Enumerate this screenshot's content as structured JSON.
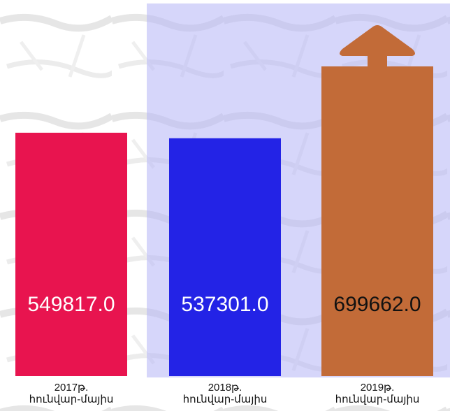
{
  "chart_data": {
    "type": "bar",
    "title": "",
    "xlabel": "",
    "ylabel": "",
    "categories": [
      [
        "2017թ.",
        "հունվար-մայիս"
      ],
      [
        "2018թ.",
        "հունվար-մայիս"
      ],
      [
        "2019թ.",
        "հունվար-մայիս"
      ]
    ],
    "values": [
      549817.0,
      537301.0,
      699662.0
    ],
    "value_labels": [
      "549817.0",
      "537301.0",
      "699662.0"
    ],
    "bar_colors": [
      "#e8144f",
      "#2323e6",
      "#c26b38"
    ],
    "label_colors": [
      "#ffffff",
      "#ffffff",
      "#111111"
    ],
    "highlight_color": "#b4b4f5",
    "arrow_color": "#c26b38",
    "trend": "up",
    "grid": false,
    "legend": "none"
  }
}
